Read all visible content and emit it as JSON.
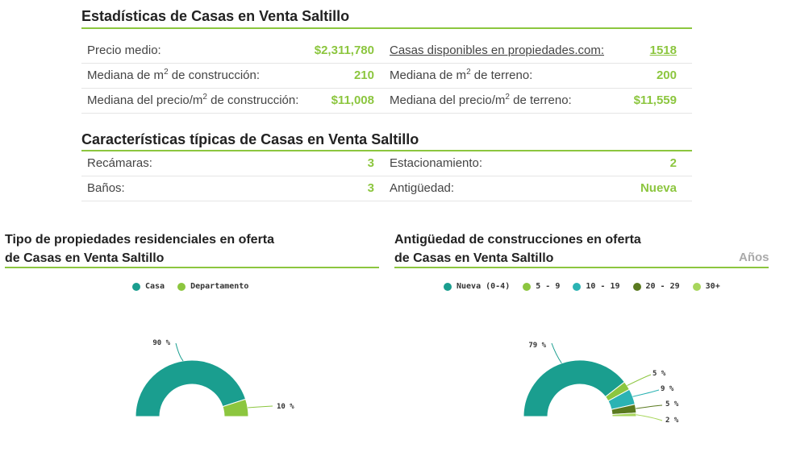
{
  "stats": {
    "title": "Estadísticas de Casas en Venta Saltillo",
    "rows": [
      {
        "l1": "Precio medio:",
        "v1": "$2,311,780",
        "l2": "Casas disponibles en propiedades.com:",
        "v2": "1518"
      },
      {
        "l1a": "Mediana de m",
        "l1b": " de construcción:",
        "v1": "210",
        "l2a": "Mediana de m",
        "l2b": " de terreno:",
        "v2": "200"
      },
      {
        "l1a": "Mediana del precio/m",
        "l1b": " de construcción:",
        "v1": "$11,008",
        "l2a": "Mediana del precio/m",
        "l2b": " de terreno:",
        "v2": "$11,559"
      }
    ],
    "sup": "2"
  },
  "features": {
    "title": "Características típicas de Casas en Venta Saltillo",
    "rows": [
      {
        "l1": "Recámaras:",
        "v1": "3",
        "l2": "Estacionamiento:",
        "v2": "2"
      },
      {
        "l1": "Baños:",
        "v1": "3",
        "l2": "Antigüedad:",
        "v2": "Nueva"
      }
    ]
  },
  "chart_data": [
    {
      "type": "pie",
      "title_line1": "Tipo de propiedades residenciales en oferta",
      "title_line2": "de Casas en Venta Saltillo",
      "categories": [
        "Casa",
        "Departamento"
      ],
      "values": [
        90,
        10
      ],
      "labels": [
        "90 %",
        "10 %"
      ],
      "colors": [
        "#1a9e8f",
        "#8cc63f"
      ]
    },
    {
      "type": "pie",
      "title_line1": "Antigüedad de construcciones en oferta",
      "title_line2": "de Casas en Venta Saltillo",
      "unit_label": "Años",
      "categories": [
        "Nueva (0-4)",
        "5 - 9",
        "10 - 19",
        "20 - 29",
        "30+"
      ],
      "values": [
        79,
        5,
        9,
        5,
        2
      ],
      "labels": [
        "79 %",
        "5 %",
        "9 %",
        "5 %",
        "2 %"
      ],
      "colors": [
        "#1a9e8f",
        "#8cc63f",
        "#2bb3b3",
        "#5a7a1f",
        "#a8d65c"
      ]
    }
  ]
}
